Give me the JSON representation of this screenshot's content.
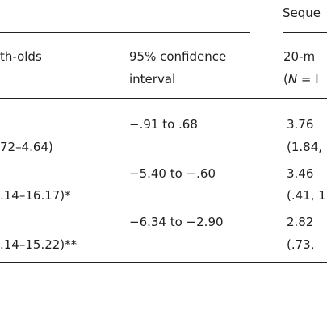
{
  "table": {
    "group_header": "Seque",
    "col_age": {
      "line1": "th-olds",
      "line2": ""
    },
    "col_ci": {
      "line1": "95% confidence",
      "line2": "interval"
    },
    "col_20m": {
      "line1": "20-m",
      "line2_prefix": "(",
      "line2_n": "N",
      "line2_suffix": " = I"
    },
    "rows": [
      {
        "age_range": "72–4.64)",
        "ci": "−.91 to .68",
        "m_value": "3.76",
        "m_range": "(1.84,"
      },
      {
        "age_range": ".14–16.17)*",
        "ci": "−5.40 to −.60",
        "m_value": "3.46",
        "m_range": "(.41, 1"
      },
      {
        "age_range": ".14–15.22)**",
        "ci": "−6.34 to −2.90",
        "m_value": "2.82",
        "m_range": "(.73,"
      }
    ]
  }
}
